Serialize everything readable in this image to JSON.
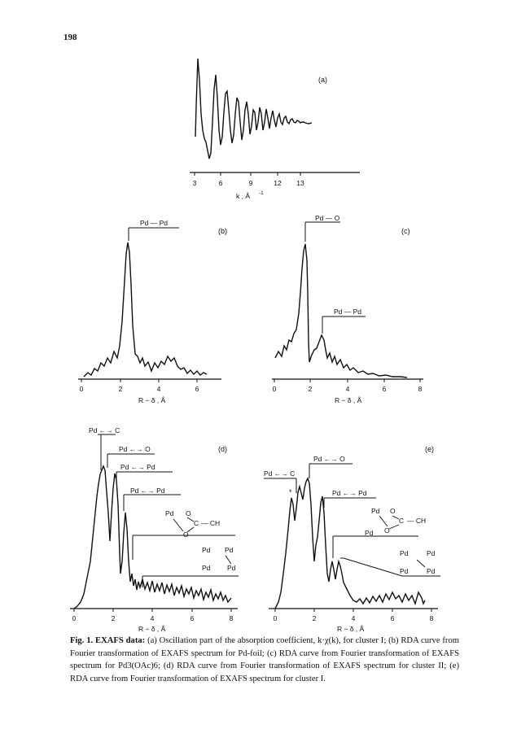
{
  "page_number": "198",
  "figure": {
    "panel_a": {
      "label": "(a)",
      "ticks": [
        "3",
        "6",
        "9",
        "12",
        "13"
      ],
      "xlabel": "k , Å",
      "xlabel_sup": "-1"
    },
    "panel_b": {
      "label": "(b)",
      "ticks": [
        "0",
        "2",
        "4",
        "6"
      ],
      "xlabel": "R − δ , Å",
      "peak_labels": [
        "Pd — Pd"
      ]
    },
    "panel_c": {
      "label": "(c)",
      "ticks": [
        "0",
        "2",
        "4",
        "6",
        "8"
      ],
      "xlabel": "R − δ , Å",
      "peak_labels": [
        "Pd — O",
        "Pd — Pd"
      ]
    },
    "panel_d": {
      "label": "(d)",
      "ticks": [
        "0",
        "2",
        "4",
        "6",
        "8"
      ],
      "xlabel": "R − δ , Å",
      "peak_labels": [
        "Pd ←→ C",
        "Pd ←→ O",
        "Pd ←→ Pd",
        "Pd ←→ Pd"
      ],
      "acetate": {
        "pd1": "Pd",
        "o1": "O",
        "c": "C",
        "ch": "— CH",
        "o2": "O"
      },
      "pdpd": [
        "Pd",
        "Pd",
        "Pd",
        "Pd"
      ]
    },
    "panel_e": {
      "label": "(e)",
      "ticks": [
        "0",
        "2",
        "4",
        "6",
        "8"
      ],
      "xlabel": "R − δ , Å",
      "peak_labels": [
        "Pd ←→ C",
        "Pd ←→ O",
        "Pd ←→ Pd"
      ],
      "star": "*",
      "acetate": {
        "pd1": "Pd",
        "o1": "O",
        "c": "C",
        "ch": "— CH",
        "pd2": "Pd",
        "o2": "O"
      },
      "pdpd": [
        "Pd",
        "Pd",
        "Pd",
        "Pd"
      ]
    }
  },
  "caption": {
    "label": "Fig. 1. EXAFS data:",
    "text": "(a) Oscillation part of the absorption coefficient, k·χ(k), for cluster I; (b) RDA curve from Fourier transformation of EXAFS spectrum for Pd-foil; (c) RDA curve from Fourier transformation of EXAFS spectrum for Pd3(OAc)6; (d) RDA curve from Fourier transformation of EXAFS spectrum for cluster II; (e) RDA curve from Fourier transformation of EXAFS spectrum for cluster I."
  }
}
